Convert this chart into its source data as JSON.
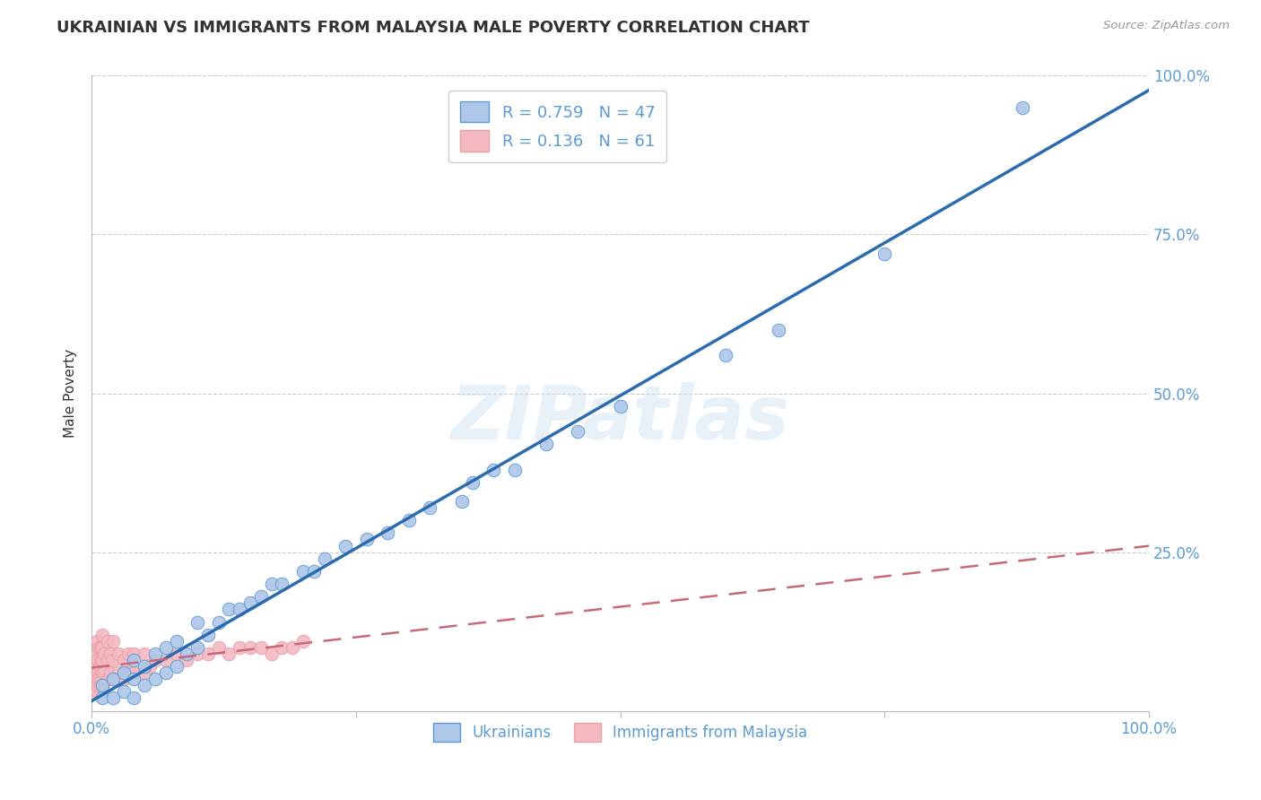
{
  "title": "UKRAINIAN VS IMMIGRANTS FROM MALAYSIA MALE POVERTY CORRELATION CHART",
  "source": "Source: ZipAtlas.com",
  "ylabel": "Male Poverty",
  "xlim": [
    0,
    100
  ],
  "ylim": [
    0,
    100
  ],
  "y_tick_labels": [
    "25.0%",
    "50.0%",
    "75.0%",
    "100.0%"
  ],
  "y_tick_positions": [
    25,
    50,
    75,
    100
  ],
  "legend_entries": [
    {
      "label": "R = 0.759   N = 47",
      "color": "#aec6e8"
    },
    {
      "label": "R = 0.136   N = 61",
      "color": "#f4b8c1"
    }
  ],
  "bottom_legend": [
    {
      "label": "Ukrainians",
      "color": "#aec6e8"
    },
    {
      "label": "Immigrants from Malaysia",
      "color": "#f4b8c1"
    }
  ],
  "watermark": "ZIPatlas",
  "blue_fill": "#aec6e8",
  "blue_edge": "#5b9bd5",
  "pink_fill": "#f4b8c1",
  "pink_edge": "#e8a0a8",
  "regression_blue_color": "#2b6cb0",
  "regression_pink_color": "#c8697a",
  "R_blue": 0.759,
  "N_blue": 47,
  "R_pink": 0.136,
  "N_pink": 61,
  "blue_x": [
    1,
    1,
    2,
    2,
    3,
    3,
    4,
    4,
    4,
    5,
    5,
    6,
    6,
    7,
    7,
    8,
    8,
    9,
    10,
    10,
    11,
    12,
    13,
    14,
    15,
    16,
    17,
    18,
    20,
    21,
    22,
    24,
    26,
    28,
    30,
    32,
    35,
    36,
    38,
    40,
    43,
    46,
    50,
    60,
    65,
    75,
    88
  ],
  "blue_y": [
    2,
    4,
    2,
    5,
    3,
    6,
    2,
    5,
    8,
    4,
    7,
    5,
    9,
    6,
    10,
    7,
    11,
    9,
    10,
    14,
    12,
    14,
    16,
    16,
    17,
    18,
    20,
    20,
    22,
    22,
    24,
    26,
    27,
    28,
    30,
    32,
    33,
    36,
    38,
    38,
    42,
    44,
    48,
    56,
    60,
    72,
    95
  ],
  "pink_x": [
    0.3,
    0.3,
    0.3,
    0.4,
    0.4,
    0.5,
    0.5,
    0.5,
    0.5,
    0.5,
    0.6,
    0.6,
    0.6,
    0.7,
    0.7,
    0.8,
    0.8,
    0.8,
    0.9,
    0.9,
    1.0,
    1.0,
    1.0,
    1.0,
    1.0,
    1.2,
    1.2,
    1.5,
    1.5,
    1.5,
    1.8,
    1.8,
    2.0,
    2.0,
    2.0,
    2.5,
    2.5,
    3.0,
    3.0,
    3.5,
    3.5,
    4.0,
    4.0,
    5.0,
    5.0,
    5.5,
    6.0,
    7.0,
    8.0,
    9.0,
    10.0,
    11.0,
    12.0,
    13.0,
    14.0,
    15.0,
    16.0,
    17.0,
    18.0,
    19.0,
    20.0
  ],
  "pink_y": [
    3,
    5,
    7,
    4,
    8,
    3,
    5,
    7,
    9,
    11,
    4,
    6,
    8,
    5,
    10,
    4,
    7,
    10,
    5,
    8,
    4,
    6,
    8,
    10,
    12,
    6,
    9,
    5,
    8,
    11,
    6,
    9,
    5,
    8,
    11,
    6,
    9,
    5,
    8,
    6,
    9,
    6,
    9,
    6,
    9,
    7,
    8,
    8,
    9,
    8,
    9,
    9,
    10,
    9,
    10,
    10,
    10,
    9,
    10,
    10,
    11
  ],
  "background_color": "#ffffff",
  "grid_color": "#cccccc",
  "title_color": "#333333",
  "axis_color": "#5b9bd5",
  "figsize": [
    14.06,
    8.92
  ],
  "dpi": 100
}
